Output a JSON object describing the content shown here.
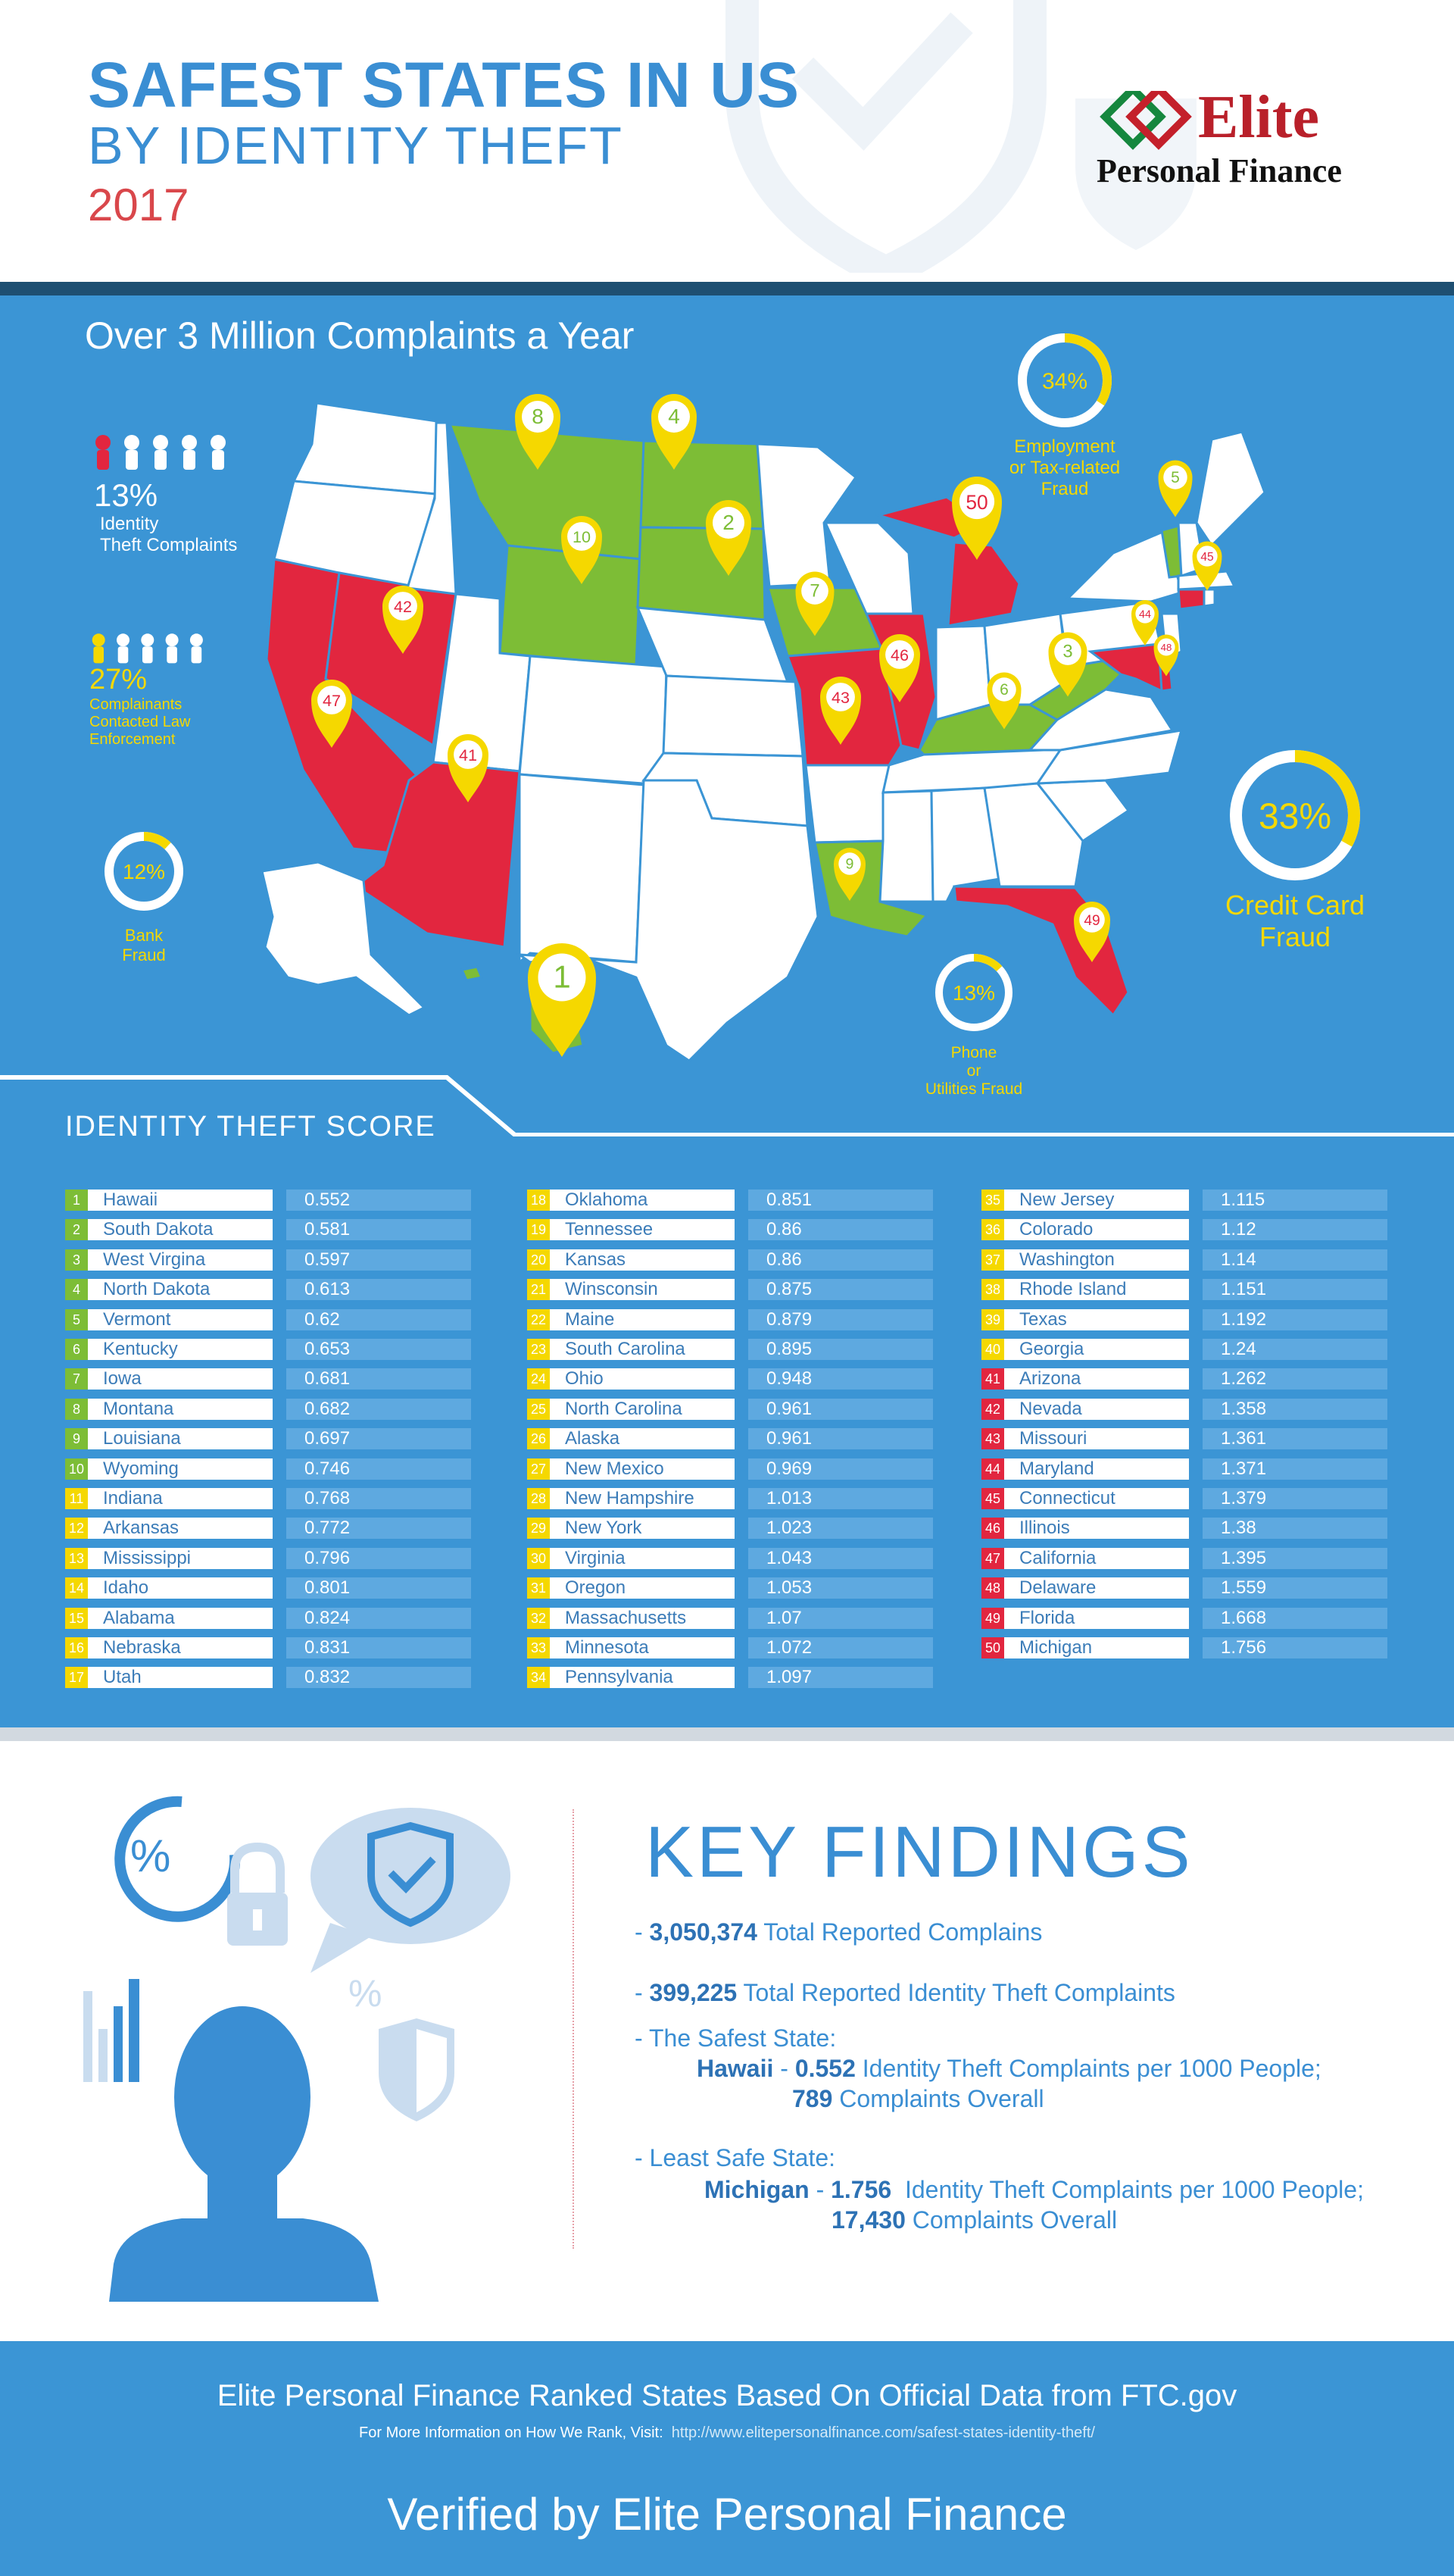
{
  "header": {
    "title_line1": "SAFEST STATES IN US",
    "title_line2": "BY IDENTITY THEFT",
    "year": "2017",
    "logo_name": "Elite",
    "logo_sub": "Personal Finance"
  },
  "map": {
    "heading": "Over 3 Million Complaints a Year",
    "stats": {
      "identity_pct": "13%",
      "identity_label_1": "Identity",
      "identity_label_2": "Theft Complaints",
      "identity_fraction": 0.13,
      "law_pct": "27%",
      "law_label_1": "Complainants",
      "law_label_2": "Contacted Law",
      "law_label_3": "Enforcement",
      "law_fraction": 0.27,
      "bank_pct": "12%",
      "bank_label_1": "Bank",
      "bank_label_2": "Fraud",
      "bank_fraction": 0.12,
      "employment_pct": "34%",
      "employment_label_1": "Employment",
      "employment_label_2": "or Tax-related",
      "employment_label_3": "Fraud",
      "employment_fraction": 0.34,
      "credit_pct": "33%",
      "credit_label_1": "Credit Card",
      "credit_label_2": "Fraud",
      "credit_fraction": 0.33,
      "phone_pct": "13%",
      "phone_label_1": "Phone",
      "phone_label_2": "or",
      "phone_label_3": "Utilities Fraud",
      "phone_fraction": 0.13
    },
    "pins": [
      "1",
      "2",
      "3",
      "4",
      "5",
      "6",
      "7",
      "8",
      "9",
      "10",
      "41",
      "42",
      "43",
      "44",
      "45",
      "46",
      "47",
      "48",
      "49",
      "50"
    ],
    "colors": {
      "safe": "#7dbd36",
      "unsafe": "#e2263f",
      "pin": "#f5d800",
      "ocean": "#3b95d5"
    }
  },
  "scores": {
    "heading": "IDENTITY THEFT SCORE",
    "rows": [
      {
        "rank": "1",
        "state": "Hawaii",
        "score": "0.552"
      },
      {
        "rank": "2",
        "state": "South Dakota",
        "score": "0.581"
      },
      {
        "rank": "3",
        "state": "West Virgina",
        "score": "0.597"
      },
      {
        "rank": "4",
        "state": "North Dakota",
        "score": "0.613"
      },
      {
        "rank": "5",
        "state": "Vermont",
        "score": "0.62"
      },
      {
        "rank": "6",
        "state": "Kentucky",
        "score": "0.653"
      },
      {
        "rank": "7",
        "state": "Iowa",
        "score": "0.681"
      },
      {
        "rank": "8",
        "state": "Montana",
        "score": "0.682"
      },
      {
        "rank": "9",
        "state": "Louisiana",
        "score": "0.697"
      },
      {
        "rank": "10",
        "state": "Wyoming",
        "score": "0.746"
      },
      {
        "rank": "11",
        "state": "Indiana",
        "score": "0.768"
      },
      {
        "rank": "12",
        "state": "Arkansas",
        "score": "0.772"
      },
      {
        "rank": "13",
        "state": "Mississippi",
        "score": "0.796"
      },
      {
        "rank": "14",
        "state": "Idaho",
        "score": "0.801"
      },
      {
        "rank": "15",
        "state": "Alabama",
        "score": "0.824"
      },
      {
        "rank": "16",
        "state": "Nebraska",
        "score": "0.831"
      },
      {
        "rank": "17",
        "state": "Utah",
        "score": "0.832"
      },
      {
        "rank": "18",
        "state": "Oklahoma",
        "score": "0.851"
      },
      {
        "rank": "19",
        "state": "Tennessee",
        "score": "0.86"
      },
      {
        "rank": "20",
        "state": "Kansas",
        "score": "0.86"
      },
      {
        "rank": "21",
        "state": "Winsconsin",
        "score": "0.875"
      },
      {
        "rank": "22",
        "state": "Maine",
        "score": "0.879"
      },
      {
        "rank": "23",
        "state": "South Carolina",
        "score": "0.895"
      },
      {
        "rank": "24",
        "state": "Ohio",
        "score": "0.948"
      },
      {
        "rank": "25",
        "state": "North Carolina",
        "score": "0.961"
      },
      {
        "rank": "26",
        "state": "Alaska",
        "score": "0.961"
      },
      {
        "rank": "27",
        "state": "New Mexico",
        "score": "0.969"
      },
      {
        "rank": "28",
        "state": "New Hampshire",
        "score": "1.013"
      },
      {
        "rank": "29",
        "state": "New York",
        "score": "1.023"
      },
      {
        "rank": "30",
        "state": "Virginia",
        "score": "1.043"
      },
      {
        "rank": "31",
        "state": "Oregon",
        "score": "1.053"
      },
      {
        "rank": "32",
        "state": "Massachusetts",
        "score": "1.07"
      },
      {
        "rank": "33",
        "state": "Minnesota",
        "score": "1.072"
      },
      {
        "rank": "34",
        "state": "Pennsylvania",
        "score": "1.097"
      },
      {
        "rank": "35",
        "state": "New Jersey",
        "score": "1.115"
      },
      {
        "rank": "36",
        "state": "Colorado",
        "score": "1.12"
      },
      {
        "rank": "37",
        "state": "Washington",
        "score": "1.14"
      },
      {
        "rank": "38",
        "state": "Rhode Island",
        "score": "1.151"
      },
      {
        "rank": "39",
        "state": "Texas",
        "score": "1.192"
      },
      {
        "rank": "40",
        "state": "Georgia",
        "score": "1.24"
      },
      {
        "rank": "41",
        "state": "Arizona",
        "score": "1.262"
      },
      {
        "rank": "42",
        "state": "Nevada",
        "score": "1.358"
      },
      {
        "rank": "43",
        "state": "Missouri",
        "score": "1.361"
      },
      {
        "rank": "44",
        "state": "Maryland",
        "score": "1.371"
      },
      {
        "rank": "45",
        "state": "Connecticut",
        "score": "1.379"
      },
      {
        "rank": "46",
        "state": "Illinois",
        "score": "1.38"
      },
      {
        "rank": "47",
        "state": "California",
        "score": "1.395"
      },
      {
        "rank": "48",
        "state": "Delaware",
        "score": "1.559"
      },
      {
        "rank": "49",
        "state": "Florida",
        "score": "1.668"
      },
      {
        "rank": "50",
        "state": "Michigan",
        "score": "1.756"
      }
    ]
  },
  "findings": {
    "title": "KEY FINDINGS",
    "line1_num": "3,050,374",
    "line1_text": "Total Reported Complains",
    "line2_num": "399,225",
    "line2_text": "Total Reported Identity Theft Complaints",
    "safest_label": "- The Safest State:",
    "safest_state": "Hawaii",
    "safest_score": "0.552",
    "safest_text": "Identity Theft Complaints per 1000 People;",
    "safest_count": "789",
    "safest_count_text": "Complaints Overall",
    "least_label": "- Least Safe State:",
    "least_state": "Michigan",
    "least_score": "1.756",
    "least_text": "Identity Theft Complaints per 1000 People;",
    "least_count": "17,430",
    "least_count_text": "Complaints Overall"
  },
  "footer": {
    "line1": "Elite Personal Finance Ranked States Based On Official Data from FTC.gov",
    "line2_label": "For More Information on How We Rank, Visit:",
    "line2_url": "http://www.elitepersonalfinance.com/safest-states-identity-theft/",
    "line3": "Verified by Elite Personal Finance"
  }
}
